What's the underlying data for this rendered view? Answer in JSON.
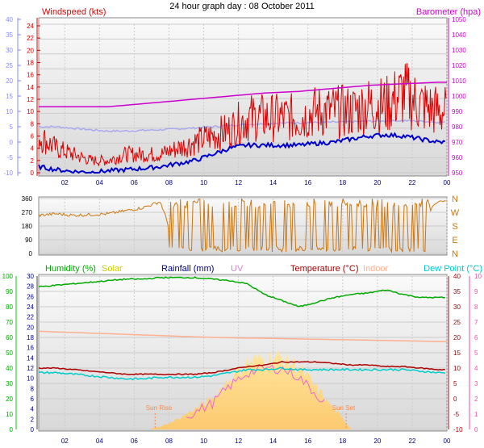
{
  "title": "24 hour graph day : 08 October 2011",
  "colors": {
    "windspeed": "#dd0000",
    "gust_line": "#0000cc",
    "barometer": "#cc00cc",
    "wind_axis": "#8888ff",
    "avg_wind": "#aaaaee",
    "direction": "#cc7711",
    "humidity": "#00aa00",
    "solar": "#cccc00",
    "rainfall": "#000088",
    "uv": "#cc88cc",
    "temperature": "#aa0000",
    "indoor": "#ffb090",
    "dewpoint": "#00cccc",
    "solar_fill": "#ffd27a",
    "uv_left": "#00cc00",
    "rain_left_axis": "#444444",
    "right_scale": "#ff44aa"
  },
  "chart_data": [
    {
      "type": "line",
      "name": "wind-barometer",
      "title": "24 hour graph day : 08 October 2011",
      "series_labels": {
        "windspeed": "Windspeed (kts)",
        "barometer": "Barometer (hpa)"
      },
      "x_ticks": [
        "02",
        "04",
        "06",
        "08",
        "10",
        "12",
        "14",
        "16",
        "18",
        "20",
        "22",
        "00"
      ],
      "x_range_hours": [
        0.5,
        24.0
      ],
      "left_outer_axis": {
        "ticks": [
          "40",
          "35",
          "30",
          "25",
          "20",
          "15",
          "10",
          "5",
          "0",
          "-5",
          "-10"
        ],
        "range": [
          -10,
          40
        ]
      },
      "left_inner_axis": {
        "ticks": [
          "24",
          "22",
          "20",
          "18",
          "16",
          "14",
          "12",
          "10",
          "8",
          "6",
          "4",
          "2",
          "0"
        ],
        "range": [
          0,
          24
        ]
      },
      "right_axis": {
        "ticks": [
          "1050",
          "1040",
          "1030",
          "1020",
          "1010",
          "1000",
          "990",
          "980",
          "970",
          "960",
          "950"
        ],
        "range": [
          950,
          1050
        ]
      },
      "windspeed_hourly": [
        6,
        4,
        3,
        2,
        2,
        3,
        3,
        3,
        4,
        5,
        6,
        7,
        9,
        9,
        9,
        9,
        10,
        10,
        10,
        11,
        11,
        13,
        11,
        10
      ],
      "avg_wind_hourly": [
        5,
        5,
        4.5,
        4,
        3.6,
        3.6,
        3.8,
        4,
        4.3,
        4.6,
        5,
        5.4,
        5.8,
        6,
        6.2,
        6.3,
        6.4,
        6.5,
        6.6,
        6.8,
        6.9,
        7,
        6.8,
        6.5
      ],
      "gust_line_hourly": [
        1,
        0.5,
        0.2,
        0.1,
        0.3,
        0.5,
        0.7,
        1,
        1.5,
        2,
        3,
        4,
        4.5,
        4.5,
        4.5,
        4.5,
        4.8,
        5,
        5.5,
        6,
        6.2,
        6,
        5.5,
        5
      ],
      "barometer_hourly": [
        993,
        993,
        993,
        993,
        993,
        994,
        995,
        996,
        997,
        998,
        999,
        1000,
        1001,
        1002,
        1002.5,
        1003,
        1004,
        1005,
        1006,
        1007,
        1007.5,
        1008,
        1008.5,
        1009
      ]
    },
    {
      "type": "line",
      "name": "wind-direction",
      "left_axis": {
        "ticks": [
          "360",
          "270",
          "180",
          "90",
          "0"
        ],
        "range": [
          0,
          360
        ]
      },
      "right_labels": [
        "N",
        "W",
        "S",
        "E",
        "N"
      ],
      "direction_hourly": [
        250,
        260,
        250,
        255,
        260,
        280,
        300,
        340,
        10,
        120,
        200,
        260,
        160,
        300,
        40,
        220,
        300,
        100,
        330,
        80,
        300,
        350,
        220,
        340
      ]
    },
    {
      "type": "line",
      "name": "humidity-temperature",
      "series_labels": {
        "humidity": "Humidity (%)",
        "solar": "Solar",
        "rainfall": "Rainfall (mm)",
        "uv": "UV",
        "temperature": "Temperature (°C)",
        "indoor": "Indoor",
        "dewpoint": "Dew Point (°C)"
      },
      "annotations": [
        "Sun Rise",
        "Sun Set"
      ],
      "left_outer_axis": {
        "ticks": [
          "100",
          "90",
          "80",
          "70",
          "60",
          "50",
          "40",
          "30",
          "20",
          "10",
          "0"
        ],
        "range": [
          0,
          100
        ]
      },
      "left_inner_axis": {
        "ticks": [
          "30",
          "28",
          "26",
          "24",
          "22",
          "20",
          "18",
          "16",
          "14",
          "12",
          "10",
          "8",
          "6",
          "4",
          "2",
          "0"
        ],
        "range": [
          0,
          30
        ]
      },
      "right_inner_axis": {
        "ticks": [
          "40",
          "35",
          "30",
          "25",
          "20",
          "15",
          "10",
          "5",
          "0",
          "-5",
          "-10"
        ],
        "range": [
          -10,
          40
        ]
      },
      "right_outer_axis": {
        "ticks": [
          "10",
          "9",
          "8",
          "7",
          "6",
          "5",
          "4",
          "3",
          "2",
          "1",
          "0"
        ],
        "range": [
          0,
          10
        ]
      },
      "humidity_hourly": [
        93,
        94,
        95,
        96,
        97,
        98,
        98,
        99,
        99,
        99,
        98,
        97,
        95,
        88,
        84,
        80,
        83,
        86,
        88,
        89,
        91,
        88,
        86,
        86
      ],
      "temperature_hourly": [
        10,
        10,
        9.5,
        9,
        8.5,
        8,
        8,
        8,
        8,
        8,
        8.5,
        9.5,
        10.5,
        11,
        12,
        12,
        12,
        11.5,
        11,
        11,
        10.5,
        10.5,
        10,
        9.5
      ],
      "indoor_hourly": [
        22,
        21.8,
        21.6,
        21.4,
        21.2,
        21,
        20.8,
        20.6,
        20.4,
        20.2,
        20,
        19.9,
        19.8,
        19.7,
        19.6,
        19.5,
        19.4,
        19.3,
        19.2,
        19.1,
        19,
        18.9,
        18.8,
        18.6
      ],
      "dewpoint_hourly": [
        8.5,
        8.5,
        8,
        7.5,
        7,
        6.5,
        6.5,
        7,
        7,
        7,
        7.5,
        8.5,
        9.5,
        9.5,
        10,
        9.5,
        9.5,
        9.5,
        9.5,
        9.5,
        9.5,
        9.5,
        9,
        8.5
      ],
      "solar_hourly": [
        0,
        0,
        0,
        0,
        0,
        0,
        0,
        0.5,
        2,
        4,
        6,
        10,
        13,
        14,
        14,
        12,
        8,
        4,
        0,
        0,
        0,
        0,
        0,
        0
      ]
    }
  ]
}
